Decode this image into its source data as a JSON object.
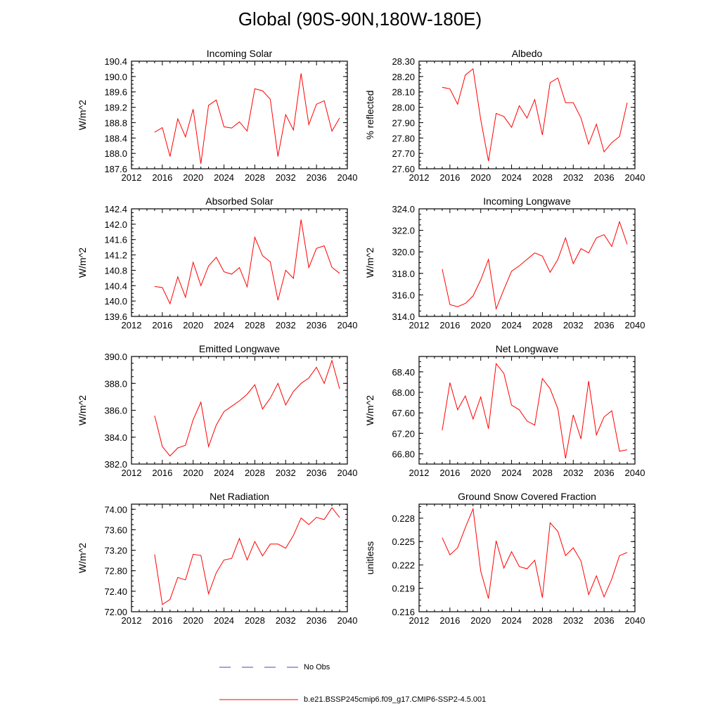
{
  "title": "Global (90S-90N,180W-180E)",
  "legend": {
    "obs_label": "No Obs",
    "obs_color": "#4a4ab0",
    "model_label": "b.e21.BSSP245cmip6.f09_g17.CMIP6-SSP2-4.5.001",
    "model_color": "#ff0000"
  },
  "chart_data": [
    {
      "type": "line",
      "title": "Incoming Solar",
      "ylabel": "W/m^2",
      "xlim": [
        2012,
        2040
      ],
      "xticks": [
        "2012",
        "2016",
        "2020",
        "2024",
        "2028",
        "2032",
        "2036",
        "2040"
      ],
      "ylim": [
        187.6,
        190.4
      ],
      "yticks": [
        "187.6",
        "188.0",
        "188.4",
        "188.8",
        "189.2",
        "189.6",
        "190.0",
        "190.4"
      ],
      "grid": false,
      "series": [
        {
          "name": "b.e21.BSSP245cmip6.f09_g17.CMIP6-SSP2-4.5.001",
          "color": "#ff0000",
          "x": [
            2015,
            2016,
            2017,
            2018,
            2019,
            2020,
            2021,
            2022,
            2023,
            2024,
            2025,
            2026,
            2027,
            2028,
            2029,
            2030,
            2031,
            2032,
            2033,
            2034,
            2035,
            2036,
            2037,
            2038,
            2039
          ],
          "y": [
            188.55,
            188.67,
            187.92,
            188.9,
            188.43,
            189.15,
            187.73,
            189.25,
            189.39,
            188.69,
            188.66,
            188.82,
            188.58,
            189.68,
            189.63,
            189.41,
            187.92,
            189.01,
            188.61,
            190.08,
            188.75,
            189.28,
            189.37,
            188.58,
            188.92
          ]
        }
      ]
    },
    {
      "type": "line",
      "title": "Albedo",
      "ylabel": "% reflected",
      "xlim": [
        2012,
        2040
      ],
      "xticks": [
        "2012",
        "2016",
        "2020",
        "2024",
        "2028",
        "2032",
        "2036",
        "2040"
      ],
      "ylim": [
        27.6,
        28.3
      ],
      "yticks": [
        "27.60",
        "27.70",
        "27.80",
        "27.90",
        "28.00",
        "28.10",
        "28.20",
        "28.30"
      ],
      "grid": false,
      "series": [
        {
          "name": "b.e21.BSSP245cmip6.f09_g17.CMIP6-SSP2-4.5.001",
          "color": "#ff0000",
          "x": [
            2015,
            2016,
            2017,
            2018,
            2019,
            2020,
            2021,
            2022,
            2023,
            2024,
            2025,
            2026,
            2027,
            2028,
            2029,
            2030,
            2031,
            2032,
            2033,
            2034,
            2035,
            2036,
            2037,
            2038,
            2039
          ],
          "y": [
            28.13,
            28.12,
            28.02,
            28.21,
            28.25,
            27.92,
            27.65,
            27.96,
            27.94,
            27.87,
            28.01,
            27.93,
            28.05,
            27.82,
            28.16,
            28.19,
            28.03,
            28.03,
            27.93,
            27.76,
            27.89,
            27.71,
            27.77,
            27.81,
            28.03
          ]
        }
      ]
    },
    {
      "type": "line",
      "title": "Absorbed Solar",
      "ylabel": "W/m^2",
      "xlim": [
        2012,
        2040
      ],
      "xticks": [
        "2012",
        "2016",
        "2020",
        "2024",
        "2028",
        "2032",
        "2036",
        "2040"
      ],
      "ylim": [
        139.6,
        142.4
      ],
      "yticks": [
        "139.6",
        "140.0",
        "140.4",
        "140.8",
        "141.2",
        "141.6",
        "142.0",
        "142.4"
      ],
      "grid": false,
      "series": [
        {
          "name": "b.e21.BSSP245cmip6.f09_g17.CMIP6-SSP2-4.5.001",
          "color": "#ff0000",
          "x": [
            2015,
            2016,
            2017,
            2018,
            2019,
            2020,
            2021,
            2022,
            2023,
            2024,
            2025,
            2026,
            2027,
            2028,
            2029,
            2030,
            2031,
            2032,
            2033,
            2034,
            2035,
            2036,
            2037,
            2038,
            2039
          ],
          "y": [
            140.38,
            140.35,
            139.93,
            140.63,
            140.1,
            141.01,
            140.4,
            140.91,
            141.14,
            140.76,
            140.7,
            140.87,
            140.37,
            141.66,
            141.18,
            141.02,
            140.02,
            140.8,
            140.59,
            142.12,
            140.87,
            141.37,
            141.44,
            140.88,
            140.72
          ]
        }
      ]
    },
    {
      "type": "line",
      "title": "Incoming Longwave",
      "ylabel": "W/m^2",
      "xlim": [
        2012,
        2040
      ],
      "xticks": [
        "2012",
        "2016",
        "2020",
        "2024",
        "2028",
        "2032",
        "2036",
        "2040"
      ],
      "ylim": [
        314.0,
        324.0
      ],
      "yticks": [
        "314.0",
        "316.0",
        "318.0",
        "320.0",
        "322.0",
        "324.0"
      ],
      "grid": false,
      "series": [
        {
          "name": "b.e21.BSSP245cmip6.f09_g17.CMIP6-SSP2-4.5.001",
          "color": "#ff0000",
          "x": [
            2015,
            2016,
            2017,
            2018,
            2019,
            2020,
            2021,
            2022,
            2023,
            2024,
            2025,
            2026,
            2027,
            2028,
            2029,
            2030,
            2031,
            2032,
            2033,
            2034,
            2035,
            2036,
            2037,
            2038,
            2039
          ],
          "y": [
            318.4,
            315.1,
            314.9,
            315.2,
            315.9,
            317.4,
            319.3,
            314.7,
            316.5,
            318.2,
            318.7,
            319.3,
            319.9,
            319.6,
            318.1,
            319.3,
            321.3,
            318.9,
            320.3,
            319.9,
            321.3,
            321.6,
            320.5,
            322.8,
            320.7
          ]
        }
      ]
    },
    {
      "type": "line",
      "title": "Emitted Longwave",
      "ylabel": "W/m^2",
      "xlim": [
        2012,
        2040
      ],
      "xticks": [
        "2012",
        "2016",
        "2020",
        "2024",
        "2028",
        "2032",
        "2036",
        "2040"
      ],
      "ylim": [
        382.0,
        390.0
      ],
      "yticks": [
        "382.0",
        "384.0",
        "386.0",
        "388.0",
        "390.0"
      ],
      "grid": false,
      "series": [
        {
          "name": "b.e21.BSSP245cmip6.f09_g17.CMIP6-SSP2-4.5.001",
          "color": "#ff0000",
          "x": [
            2015,
            2016,
            2017,
            2018,
            2019,
            2020,
            2021,
            2022,
            2023,
            2024,
            2025,
            2026,
            2027,
            2028,
            2029,
            2030,
            2031,
            2032,
            2033,
            2034,
            2035,
            2036,
            2037,
            2038,
            2039
          ],
          "y": [
            385.6,
            383.3,
            382.6,
            383.2,
            383.4,
            385.3,
            386.6,
            383.3,
            384.9,
            385.9,
            386.3,
            386.7,
            387.2,
            387.9,
            386.1,
            386.9,
            388.0,
            386.4,
            387.4,
            388.0,
            388.4,
            389.2,
            388.0,
            389.7,
            387.6
          ]
        }
      ]
    },
    {
      "type": "line",
      "title": "Net Longwave",
      "ylabel": "W/m^2",
      "xlim": [
        2012,
        2040
      ],
      "xticks": [
        "2012",
        "2016",
        "2020",
        "2024",
        "2028",
        "2032",
        "2036",
        "2040"
      ],
      "ylim": [
        66.6,
        68.7
      ],
      "yticks": [
        "66.80",
        "67.20",
        "67.60",
        "68.00",
        "68.40"
      ],
      "grid": false,
      "series": [
        {
          "name": "b.e21.BSSP245cmip6.f09_g17.CMIP6-SSP2-4.5.001",
          "color": "#ff0000",
          "x": [
            2015,
            2016,
            2017,
            2018,
            2019,
            2020,
            2021,
            2022,
            2023,
            2024,
            2025,
            2026,
            2027,
            2028,
            2029,
            2030,
            2031,
            2032,
            2033,
            2034,
            2035,
            2036,
            2037,
            2038,
            2039
          ],
          "y": [
            67.26,
            68.19,
            67.66,
            67.93,
            67.48,
            67.91,
            67.29,
            68.56,
            68.37,
            67.75,
            67.66,
            67.44,
            67.36,
            68.27,
            68.07,
            67.68,
            66.71,
            67.56,
            67.09,
            68.22,
            67.17,
            67.52,
            67.64,
            66.85,
            66.88
          ]
        }
      ]
    },
    {
      "type": "line",
      "title": "Net Radiation",
      "ylabel": "W/m^2",
      "xlim": [
        2012,
        2040
      ],
      "xticks": [
        "2012",
        "2016",
        "2020",
        "2024",
        "2028",
        "2032",
        "2036",
        "2040"
      ],
      "ylim": [
        72.0,
        74.1
      ],
      "yticks": [
        "72.00",
        "72.40",
        "72.80",
        "73.20",
        "73.60",
        "74.00"
      ],
      "grid": false,
      "series": [
        {
          "name": "b.e21.BSSP245cmip6.f09_g17.CMIP6-SSP2-4.5.001",
          "color": "#ff0000",
          "x": [
            2015,
            2016,
            2017,
            2018,
            2019,
            2020,
            2021,
            2022,
            2023,
            2024,
            2025,
            2026,
            2027,
            2028,
            2029,
            2030,
            2031,
            2032,
            2033,
            2034,
            2035,
            2036,
            2037,
            2038,
            2039
          ],
          "y": [
            73.12,
            72.14,
            72.24,
            72.67,
            72.62,
            73.12,
            73.1,
            72.35,
            72.76,
            73.01,
            73.04,
            73.43,
            73.01,
            73.37,
            73.09,
            73.32,
            73.32,
            73.24,
            73.49,
            73.83,
            73.7,
            73.84,
            73.8,
            74.03,
            73.84
          ]
        }
      ]
    },
    {
      "type": "line",
      "title": "Ground Snow Covered Fraction",
      "ylabel": "unitless",
      "xlim": [
        2012,
        2040
      ],
      "xticks": [
        "2012",
        "2016",
        "2020",
        "2024",
        "2028",
        "2032",
        "2036",
        "2040"
      ],
      "ylim": [
        0.216,
        0.2298
      ],
      "yticks": [
        "0.216",
        "0.219",
        "0.222",
        "0.225",
        "0.228"
      ],
      "grid": false,
      "series": [
        {
          "name": "b.e21.BSSP245cmip6.f09_g17.CMIP6-SSP2-4.5.001",
          "color": "#ff0000",
          "x": [
            2015,
            2016,
            2017,
            2018,
            2019,
            2020,
            2021,
            2022,
            2023,
            2024,
            2025,
            2026,
            2027,
            2028,
            2029,
            2030,
            2031,
            2032,
            2033,
            2034,
            2035,
            2036,
            2037,
            2038,
            2039
          ],
          "y": [
            0.2255,
            0.2233,
            0.2242,
            0.2268,
            0.2292,
            0.2212,
            0.2177,
            0.2251,
            0.2216,
            0.2237,
            0.2218,
            0.2215,
            0.2226,
            0.2178,
            0.2274,
            0.2263,
            0.2232,
            0.2242,
            0.2225,
            0.2182,
            0.2206,
            0.2179,
            0.2202,
            0.2232,
            0.2236
          ]
        }
      ]
    }
  ]
}
